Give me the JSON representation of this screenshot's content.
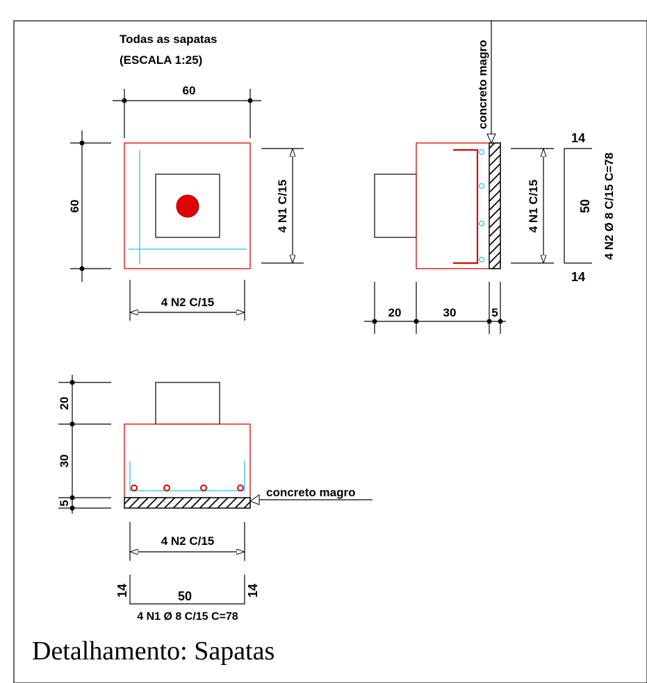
{
  "header": {
    "title": "Todas as sapatas",
    "scale": "(ESCALA 1:25)"
  },
  "plan_view": {
    "top_dim": "60",
    "left_dim": "60",
    "right_rebar": "4   N1   C/15",
    "bottom_rebar": "4   N2   C/15"
  },
  "side_view": {
    "lean_concrete": "concreto magro",
    "rebar_left": "4   N1   C/15",
    "dim_20": "20",
    "dim_30": "30",
    "dim_5": "5",
    "bar_top": "14",
    "bar_length": "50",
    "bar_bottom": "14",
    "bar_spec": "4   N2   Ø 8   C/15   C=78"
  },
  "section_view": {
    "dim_20": "20",
    "dim_30": "30",
    "dim_5": "5",
    "lean_concrete": "concreto magro",
    "bottom_rebar": "4   N2    C/15",
    "bar_left": "14",
    "bar_length": "50",
    "bar_right": "14",
    "bar_spec": "4  N1  Ø 8  C/15  C=78"
  },
  "caption": "Detalhamento: Sapatas",
  "colors": {
    "concrete_outline": "#e00000",
    "rebar": "#2cc0e6",
    "column_section": "#e00000",
    "lines": "#000000"
  }
}
